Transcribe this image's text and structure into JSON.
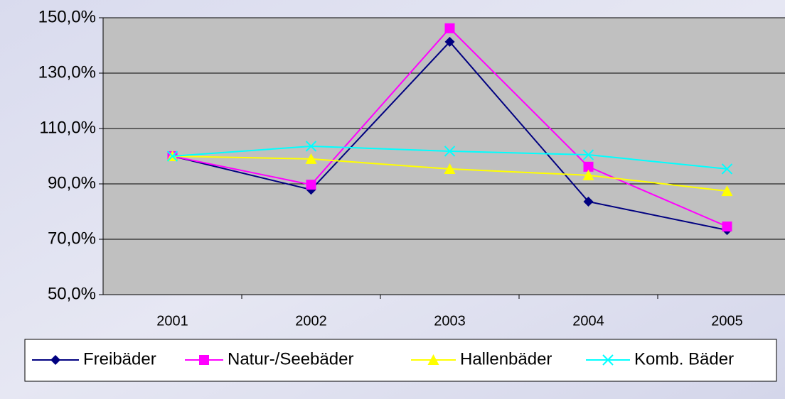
{
  "chart_data": {
    "type": "line",
    "categories": [
      "2001",
      "2002",
      "2003",
      "2004",
      "2005"
    ],
    "ylim": [
      50,
      150
    ],
    "yticks": [
      {
        "value": 50,
        "label": "50,0%"
      },
      {
        "value": 70,
        "label": "70,0%"
      },
      {
        "value": 90,
        "label": "90,0%"
      },
      {
        "value": 110,
        "label": "110,0%"
      },
      {
        "value": 130,
        "label": "130,0%"
      },
      {
        "value": 150,
        "label": "150,0%"
      }
    ],
    "grid": true,
    "legend": "bottom",
    "series": [
      {
        "name": "Freibäder",
        "color": "#000080",
        "marker": "diamond",
        "values": [
          100,
          87.9,
          141.3,
          83.6,
          73.3
        ]
      },
      {
        "name": "Natur-/Seebäder",
        "color": "#ff00ff",
        "marker": "square",
        "values": [
          100,
          89.7,
          146.2,
          96.2,
          74.6
        ]
      },
      {
        "name": "Hallenbäder",
        "color": "#ffff00",
        "marker": "triangle",
        "values": [
          100,
          99,
          95.4,
          93.1,
          87.4
        ]
      },
      {
        "name": "Komb. Bäder",
        "color": "#00ffff",
        "marker": "x",
        "values": [
          100,
          103.6,
          101.8,
          100.5,
          95.4
        ]
      }
    ]
  }
}
